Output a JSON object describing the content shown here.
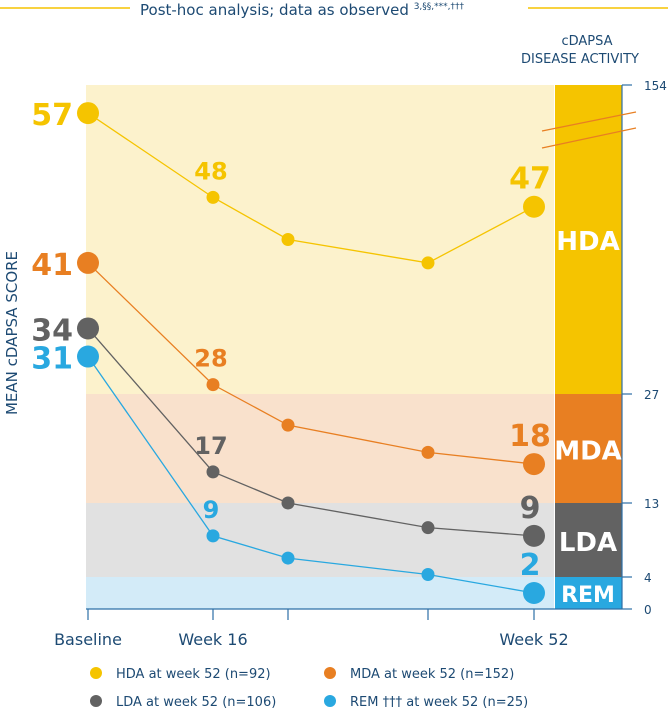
{
  "chart_data": {
    "type": "line",
    "title": "Post-hoc analysis; data as observed",
    "title_superscript": "3,§§,***,†††",
    "ylabel": "MEAN cDAPSA SCORE",
    "scale_title": [
      "cDAPSA",
      "DISEASE ACTIVITY"
    ],
    "x_tick_labels": [
      "Baseline",
      "Week 16",
      "Week 52"
    ],
    "points_x_weeks": [
      0,
      16,
      24,
      40,
      52
    ],
    "zones": [
      {
        "name": "HDA",
        "from": 27,
        "to": 154,
        "band_color": "#fcf2cc",
        "bar_color": "#f5c400"
      },
      {
        "name": "MDA",
        "from": 13,
        "to": 27,
        "band_color": "#f9e1cc",
        "bar_color": "#e87f22"
      },
      {
        "name": "LDA",
        "from": 4,
        "to": 13,
        "band_color": "#e1e1e1",
        "bar_color": "#626262"
      },
      {
        "name": "REM",
        "from": 0,
        "to": 4,
        "band_color": "#d3ebf8",
        "bar_color": "#29a8e0"
      }
    ],
    "scale_ticks": [
      "154",
      "27",
      "13",
      "4",
      "0"
    ],
    "series": [
      {
        "name": "HDA at week 52 (n=92)",
        "color": "#f5c400",
        "values": [
          57,
          48,
          43.5,
          41,
          47
        ],
        "labels": [
          "57",
          "48",
          "",
          "",
          "47"
        ]
      },
      {
        "name": "MDA at week 52 (n=152)",
        "color": "#e87f22",
        "values": [
          41,
          28,
          23,
          19.5,
          18
        ],
        "labels": [
          "41",
          "28",
          "",
          "",
          "18"
        ]
      },
      {
        "name": "LDA at week 52 (n=106)",
        "color": "#626262",
        "values": [
          34,
          17,
          13,
          10,
          9
        ],
        "labels": [
          "34",
          "17",
          "",
          "",
          "9"
        ]
      },
      {
        "name": "REM ††† at week 52 (n=25)",
        "color": "#29a8e0",
        "values": [
          31,
          9,
          6.3,
          4.3,
          2
        ],
        "labels": [
          "31",
          "9",
          "",
          "",
          "2"
        ]
      }
    ]
  },
  "colors": {
    "text": "#1d4a73",
    "axis": "#2d6fa6",
    "header_line": "#f5c400"
  }
}
